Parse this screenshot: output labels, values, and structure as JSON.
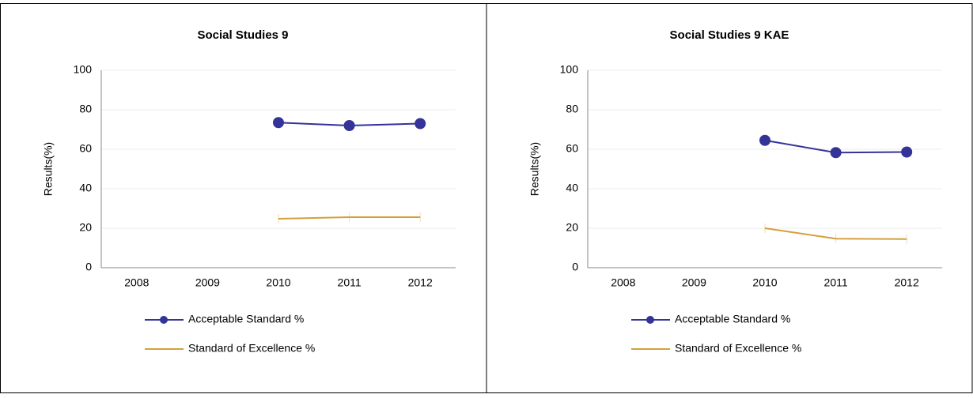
{
  "chart_data": [
    {
      "type": "line",
      "title": "Social Studies 9",
      "y_label": "Results(%)",
      "categories": [
        "2008",
        "2009",
        "2010",
        "2011",
        "2012"
      ],
      "series": [
        {
          "name": "Acceptable Standard %",
          "color": "#333399",
          "marker": "circle",
          "values": [
            null,
            null,
            73.5,
            72,
            73
          ]
        },
        {
          "name": "Standard of Excellence %",
          "color": "#d4a039",
          "values": [
            null,
            null,
            24.8,
            25.6,
            25.6
          ]
        }
      ],
      "ylim": [
        0,
        100
      ],
      "yticks": [
        0,
        20,
        40,
        60,
        80,
        100
      ],
      "grid": true
    },
    {
      "type": "line",
      "title": "Social Studies 9 KAE",
      "y_label": "Results(%)",
      "categories": [
        "2008",
        "2009",
        "2010",
        "2011",
        "2012"
      ],
      "series": [
        {
          "name": "Acceptable Standard %",
          "color": "#333399",
          "marker": "circle",
          "values": [
            null,
            null,
            64.5,
            58.3,
            58.6
          ]
        },
        {
          "name": "Standard of Excellence %",
          "color": "#d4a039",
          "values": [
            null,
            null,
            20,
            14.7,
            14.5
          ]
        }
      ],
      "ylim": [
        0,
        100
      ],
      "yticks": [
        0,
        20,
        40,
        60,
        80,
        100
      ],
      "grid": true
    }
  ]
}
